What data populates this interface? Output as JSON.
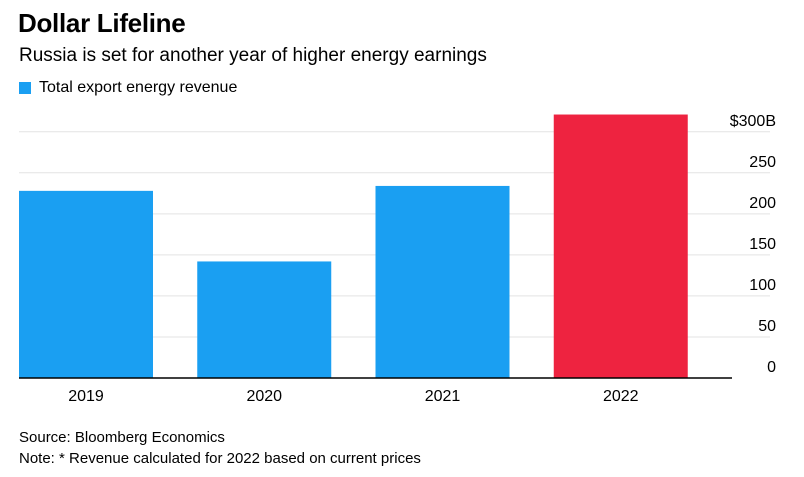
{
  "header": {
    "title": "Dollar Lifeline",
    "subtitle": "Russia is set for another year of higher energy earnings",
    "legend_label": "Total export energy revenue"
  },
  "footer": {
    "source": "Source: Bloomberg Economics",
    "note": "Note: * Revenue calculated for 2022 based on current prices"
  },
  "colors": {
    "series": "#1a9ff2",
    "highlight": "#ee2340",
    "grid": "#e3e3e3",
    "axis": "#000000"
  },
  "chart_data": {
    "type": "bar",
    "title": "Dollar Lifeline",
    "subtitle": "Russia is set for another year of higher energy earnings",
    "categories": [
      "2019",
      "2020",
      "2021",
      "2022"
    ],
    "series": [
      {
        "name": "Total export energy revenue",
        "values": [
          228,
          142,
          234,
          321
        ]
      }
    ],
    "highlight_category": "2022",
    "ylim": [
      0,
      330
    ],
    "yticks": [
      0,
      50,
      100,
      150,
      200,
      250,
      300
    ],
    "ytick_labels": [
      "0",
      "50",
      "100",
      "150",
      "200",
      "250",
      "$300B"
    ],
    "yaxis_position": "right",
    "grid": true,
    "legend_position": "top-left",
    "xlabel": "",
    "ylabel": ""
  }
}
